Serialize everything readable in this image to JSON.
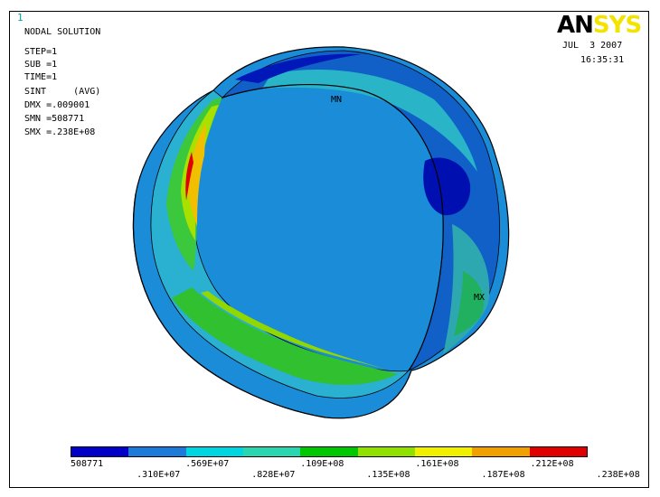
{
  "window_number": "1",
  "title": "NODAL SOLUTION",
  "info": {
    "step": "STEP=1",
    "sub": "SUB =1",
    "time": "TIME=1",
    "sint": "SINT     (AVG)",
    "dmx": "DMX =.009001",
    "smn": "SMN =508771",
    "smx": "SMX =.238E+08"
  },
  "logo": {
    "part1": "AN",
    "part2": "SYS"
  },
  "date": "JUL  3 2007",
  "time_of_day": "16:35:31",
  "markers": {
    "min": "MN",
    "max": "MX"
  },
  "legend": {
    "colors": [
      "#0000c8",
      "#1e7ad8",
      "#00d6e0",
      "#2ad6b0",
      "#00c800",
      "#90e000",
      "#f0f000",
      "#f0a000",
      "#e00000"
    ],
    "labels_lower": [
      "508771",
      ".569E+07",
      ".109E+08",
      ".161E+08",
      ".212E+08"
    ],
    "labels_upper": [
      ".310E+07",
      ".828E+07",
      ".135E+08",
      ".187E+08",
      ".238E+08"
    ]
  }
}
